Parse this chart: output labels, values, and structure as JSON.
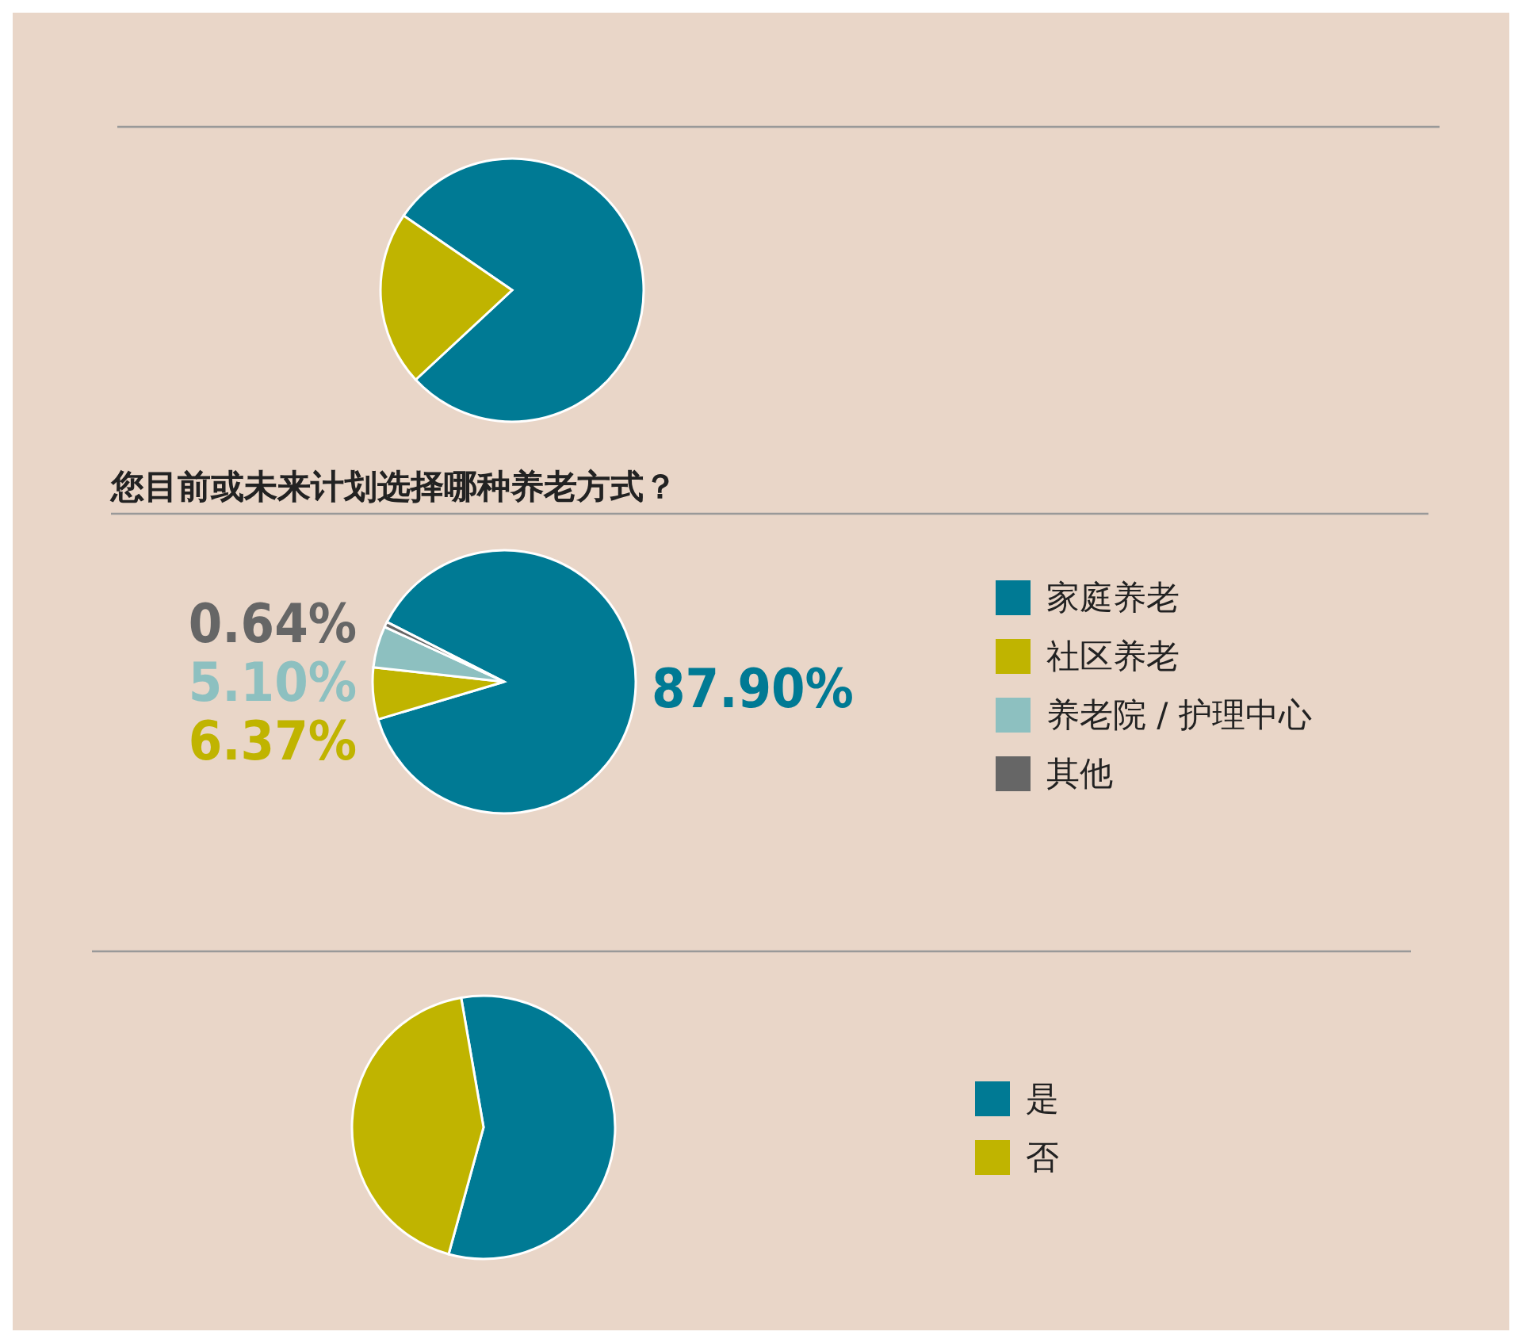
{
  "chart_data": [
    {
      "type": "pie",
      "categories": [
        null,
        null
      ],
      "values": [
        78.5,
        21.5
      ],
      "colors": [
        "#007a94",
        "#c0b400"
      ],
      "legend": false
    },
    {
      "type": "pie",
      "title": "您目前或未来计划选择哪种养老方式？",
      "categories": [
        "家庭养老",
        "社区养老",
        "养老院 / 护理中心",
        "其他"
      ],
      "values": [
        87.9,
        6.37,
        5.1,
        0.64
      ],
      "value_labels": [
        "87.90%",
        "6.37%",
        "5.10%",
        "0.64%"
      ],
      "colors": [
        "#007a94",
        "#c0b400",
        "#8dc0c0",
        "#666666"
      ],
      "legend": "right"
    },
    {
      "type": "pie",
      "categories": [
        "是",
        "否"
      ],
      "values": [
        57,
        43
      ],
      "colors": [
        "#007a94",
        "#c0b400"
      ],
      "legend": "right"
    }
  ]
}
